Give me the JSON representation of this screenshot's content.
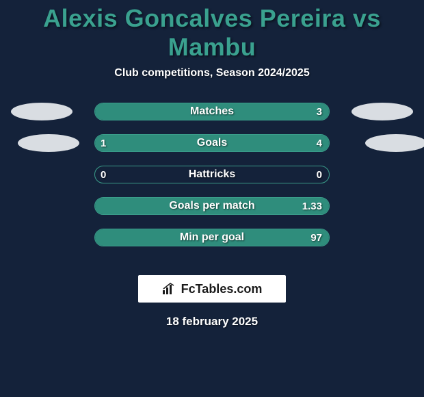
{
  "title": "Alexis Goncalves Pereira vs Mambu",
  "title_color": "#3aa18f",
  "subtitle": "Club competitions, Season 2024/2025",
  "background_color": "#14223a",
  "bar_border_color": "#3a9d8a",
  "bar_fill_color": "#2f8d7c",
  "ellipse_color": "#d9dde2",
  "stats": [
    {
      "label": "Matches",
      "left_val": "",
      "right_val": "3",
      "left_pct": 0,
      "right_pct": 100
    },
    {
      "label": "Goals",
      "left_val": "1",
      "right_val": "4",
      "left_pct": 20,
      "right_pct": 80
    },
    {
      "label": "Hattricks",
      "left_val": "0",
      "right_val": "0",
      "left_pct": 0,
      "right_pct": 0
    },
    {
      "label": "Goals per match",
      "left_val": "",
      "right_val": "1.33",
      "left_pct": 0,
      "right_pct": 100
    },
    {
      "label": "Min per goal",
      "left_val": "",
      "right_val": "97",
      "left_pct": 0,
      "right_pct": 100
    }
  ],
  "brand": "FcTables.com",
  "date": "18 february 2025"
}
